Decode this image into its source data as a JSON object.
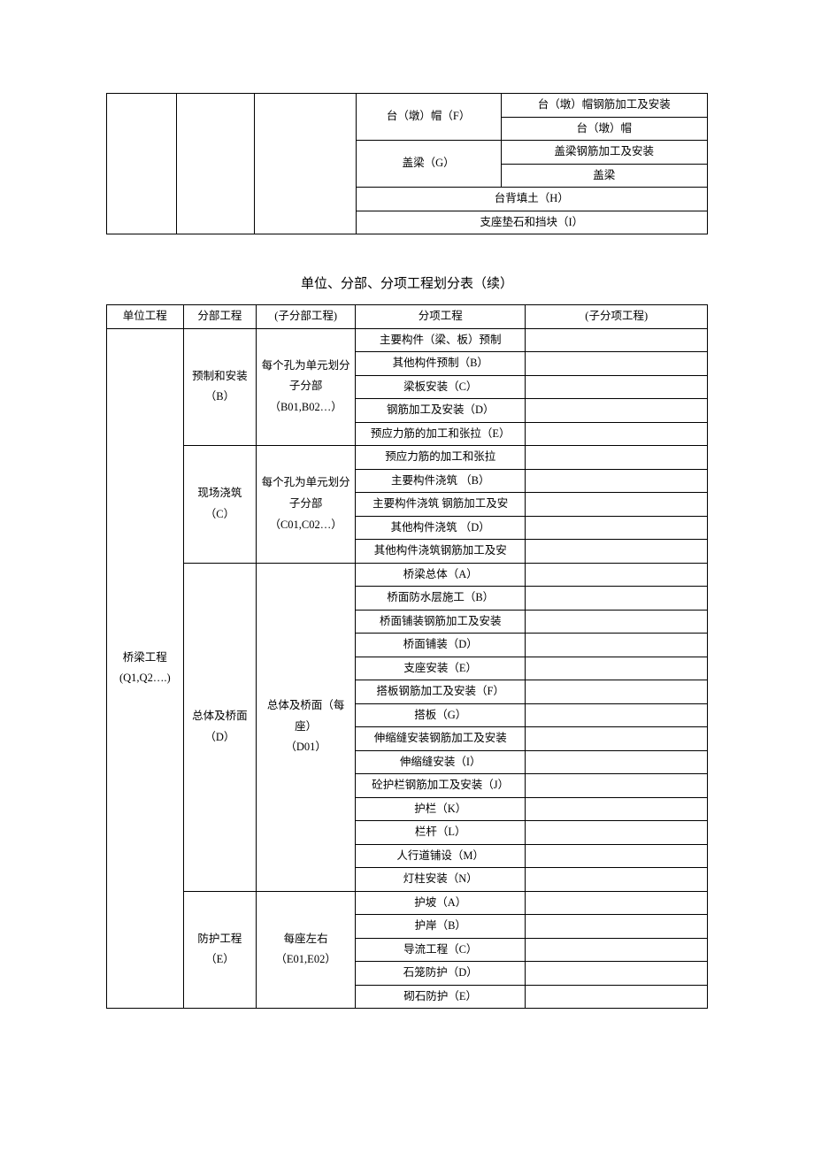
{
  "table1": {
    "rows": [
      {
        "c4": "台（墩）帽（F）",
        "c5": "台（墩）帽钢筋加工及安装"
      },
      {
        "c5": "台（墩）帽"
      },
      {
        "c4": "盖梁（G）",
        "c5": "盖梁钢筋加工及安装"
      },
      {
        "c5": "盖梁"
      },
      {
        "c45": "台背填土（H）"
      },
      {
        "c45": "支座垫石和挡块（I）"
      }
    ]
  },
  "title": "单位、分部、分项工程划分表（续）",
  "table2": {
    "head": {
      "c1": "单位工程",
      "c2": "分部工程",
      "c3": "(子分部工程)",
      "c4": "分项工程",
      "c5": "(子分项工程)"
    },
    "c1": "桥梁工程\n(Q1,Q2….)",
    "groups": [
      {
        "c2": "预制和安装\n（B）",
        "c3": "每个孔为单元划分子分部（B01,B02…）",
        "rows": [
          "主要构件（梁、板）预制",
          "其他构件预制（B）",
          "梁板安装（C）",
          "钢筋加工及安装（D）",
          "预应力筋的加工和张拉（E）"
        ]
      },
      {
        "c2": "现场浇筑\n（C）",
        "c3": "每个孔为单元划分子分部（C01,C02…）",
        "rows": [
          "预应力筋的加工和张拉",
          "主要构件浇筑 （B）",
          "主要构件浇筑 钢筋加工及安",
          "其他构件浇筑 （D）",
          "其他构件浇筑钢筋加工及安"
        ]
      },
      {
        "c2": "总体及桥面\n（D）",
        "c3": "总体及桥面（每座）\n（D01）",
        "rows": [
          "桥梁总体（A）",
          "桥面防水层施工（B）",
          "桥面铺装钢筋加工及安装",
          "桥面铺装（D）",
          "支座安装（E）",
          "搭板钢筋加工及安装（F）",
          "搭板（G）",
          "伸缩缝安装钢筋加工及安装",
          "伸缩缝安装（I）",
          "砼护栏钢筋加工及安装（J）",
          "护栏（K）",
          "栏杆（L）",
          "人行道铺设（M）",
          "灯柱安装（N）"
        ]
      },
      {
        "c2": "防护工程\n（E）",
        "c3": "每座左右\n（E01,E02）",
        "rows": [
          "护坡（A）",
          "护岸（B）",
          "导流工程（C）",
          "石笼防护（D）",
          "砌石防护（E）"
        ]
      }
    ]
  }
}
